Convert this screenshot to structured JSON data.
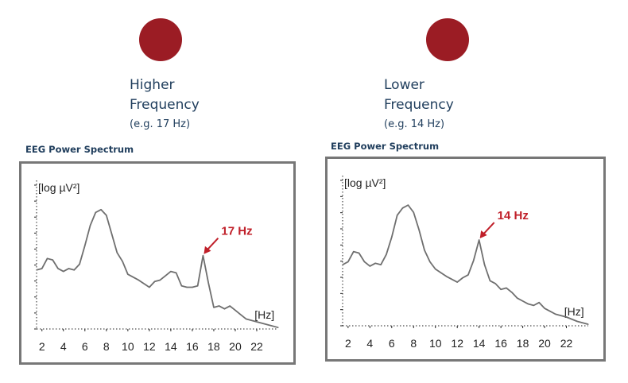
{
  "colors": {
    "dot": "#9b1c24",
    "heading_text": "#1f3d5c",
    "annotation": "#c0202a",
    "trace": "#6f6f6f",
    "frame": "#777777"
  },
  "panels": [
    {
      "label_line1": "Higher",
      "label_line2": "Frequency",
      "example": "(e.g. 17 Hz)",
      "spectrum_heading": "EEG Power Spectrum"
    },
    {
      "label_line1": "Lower",
      "label_line2": "Frequency",
      "example": "(e.g. 14 Hz)",
      "spectrum_heading": "EEG Power Spectrum"
    }
  ],
  "chart_data": [
    {
      "type": "line",
      "xlabel": "[Hz]",
      "ylabel": "[log µV²]",
      "xlim": [
        1.5,
        24
      ],
      "ylim": [
        0,
        10
      ],
      "xticks": [
        2,
        4,
        6,
        8,
        10,
        12,
        14,
        16,
        18,
        20,
        22
      ],
      "grid": false,
      "annotation": {
        "text": "17 Hz",
        "x": 17,
        "y": 5.1
      },
      "series": [
        {
          "x": [
            1.5,
            2.0,
            2.5,
            3.0,
            3.5,
            4.0,
            4.5,
            5.0,
            5.5,
            6.0,
            6.5,
            7.0,
            7.5,
            8.0,
            8.5,
            9.0,
            9.5,
            10.0,
            11.0,
            12.0,
            12.5,
            13.0,
            13.5,
            14.0,
            14.5,
            15.0,
            15.5,
            16.0,
            16.5,
            17.0,
            17.5,
            18.0,
            18.5,
            19.0,
            19.5,
            20.0,
            20.5,
            21.0,
            22.0,
            23.0,
            24.0
          ],
          "y": [
            4.1,
            4.2,
            4.9,
            4.8,
            4.2,
            4.0,
            4.2,
            4.1,
            4.5,
            5.8,
            7.2,
            8.1,
            8.3,
            7.9,
            6.6,
            5.3,
            4.7,
            3.8,
            3.4,
            2.9,
            3.3,
            3.4,
            3.7,
            4.0,
            3.9,
            3.0,
            2.9,
            2.9,
            3.0,
            5.1,
            3.2,
            1.5,
            1.6,
            1.4,
            1.6,
            1.3,
            1.0,
            0.7,
            0.5,
            0.3,
            0.1
          ]
        }
      ]
    },
    {
      "type": "line",
      "xlabel": "[Hz]",
      "ylabel": "[log µV²]",
      "xlim": [
        1.5,
        24
      ],
      "ylim": [
        0,
        10
      ],
      "xticks": [
        2,
        4,
        6,
        8,
        10,
        12,
        14,
        16,
        18,
        20,
        22
      ],
      "grid": false,
      "annotation": {
        "text": "14 Hz",
        "x": 14,
        "y": 5.9
      },
      "series": [
        {
          "x": [
            1.5,
            2.0,
            2.5,
            3.0,
            3.5,
            4.0,
            4.5,
            5.0,
            5.5,
            6.0,
            6.5,
            7.0,
            7.5,
            8.0,
            8.5,
            9.0,
            9.5,
            10.0,
            11.0,
            12.0,
            12.5,
            13.0,
            13.5,
            14.0,
            14.5,
            15.0,
            15.5,
            16.0,
            16.5,
            17.0,
            17.5,
            18.0,
            18.5,
            19.0,
            19.5,
            20.0,
            20.5,
            21.0,
            22.0,
            23.0,
            24.0
          ],
          "y": [
            4.2,
            4.4,
            5.1,
            5.0,
            4.4,
            4.1,
            4.3,
            4.2,
            4.9,
            6.1,
            7.6,
            8.1,
            8.3,
            7.8,
            6.6,
            5.2,
            4.4,
            3.9,
            3.4,
            3.0,
            3.3,
            3.5,
            4.5,
            5.9,
            4.2,
            3.1,
            2.9,
            2.5,
            2.6,
            2.3,
            1.9,
            1.7,
            1.5,
            1.4,
            1.6,
            1.2,
            1.0,
            0.8,
            0.6,
            0.3,
            0.1
          ]
        }
      ]
    }
  ]
}
